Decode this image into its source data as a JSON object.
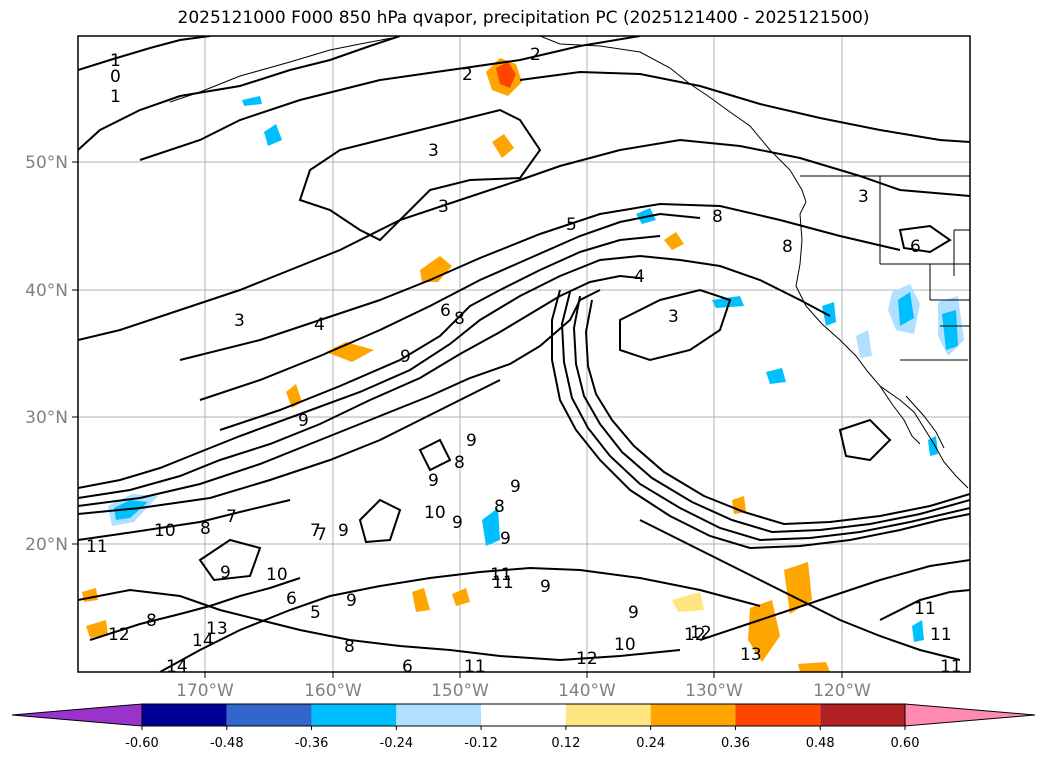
{
  "title": "2025121000 F000 850 hPa qvapor, precipitation PC (2025121400 - 2025121500)",
  "map": {
    "lat_labels": [
      "50°N",
      "40°N",
      "30°N",
      "20°N"
    ],
    "lon_labels": [
      "170°W",
      "160°W",
      "150°W",
      "140°W",
      "130°W",
      "120°W"
    ],
    "gridlines": true,
    "contour_labels": [
      "1",
      "0",
      "1",
      "2",
      "2",
      "3",
      "3",
      "3",
      "5",
      "4",
      "4",
      "6",
      "8",
      "9",
      "9",
      "9",
      "8",
      "9",
      "10",
      "10",
      "10",
      "11",
      "7",
      "7",
      "8",
      "9",
      "9",
      "5",
      "6",
      "8",
      "13",
      "14",
      "14",
      "12",
      "9",
      "11",
      "12",
      "13",
      "12",
      "11",
      "10",
      "11",
      "3",
      "6",
      "8",
      "8",
      "3",
      "9",
      "9",
      "8",
      "9",
      "9",
      "9",
      "12",
      "11",
      "11",
      "11",
      "8",
      "7",
      "6"
    ]
  },
  "colorbar": {
    "bounds": [
      "-0.60",
      "-0.48",
      "-0.36",
      "-0.24",
      "-0.12",
      "0.12",
      "0.24",
      "0.36",
      "0.48",
      "0.60"
    ],
    "colors": [
      "#9933cc",
      "#000099",
      "#3366cc",
      "#00bfff",
      "#b0e0ff",
      "#ffffff",
      "#ffe680",
      "#ffa500",
      "#ff4500",
      "#b22222",
      "#ff8cb0"
    ],
    "extend": "both"
  }
}
